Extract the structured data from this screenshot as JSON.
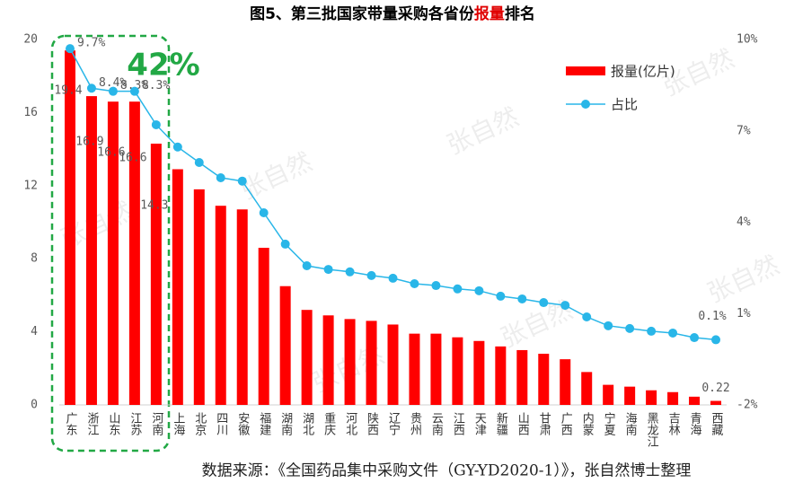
{
  "chart_data": {
    "type": "bar_line",
    "title_prefix": "图5、第三批国家带量采购各省份",
    "title_highlight": "报量",
    "title_suffix": "排名",
    "categories": [
      "广东",
      "浙江",
      "山东",
      "江苏",
      "河南",
      "上海",
      "北京",
      "四川",
      "安徽",
      "福建",
      "湖南",
      "湖北",
      "重庆",
      "河北",
      "陕西",
      "辽宁",
      "贵州",
      "云南",
      "江西",
      "天津",
      "新疆",
      "山西",
      "甘肃",
      "广西",
      "内蒙",
      "宁夏",
      "海南",
      "黑龙江",
      "吉林",
      "青海",
      "西藏"
    ],
    "series": [
      {
        "name": "报量(亿片)",
        "color": "#ff0000",
        "values": [
          19.4,
          16.9,
          16.6,
          16.6,
          14.3,
          12.9,
          11.8,
          10.9,
          10.7,
          8.6,
          6.5,
          5.2,
          4.9,
          4.7,
          4.6,
          4.4,
          3.9,
          3.9,
          3.7,
          3.5,
          3.2,
          3.0,
          2.8,
          2.5,
          1.8,
          1.1,
          1.0,
          0.8,
          0.7,
          0.45,
          0.22
        ],
        "value_labels": [
          "19.4",
          "16.9",
          "16.6",
          "16.6",
          "14.3",
          null,
          null,
          null,
          null,
          null,
          null,
          null,
          null,
          null,
          null,
          null,
          null,
          null,
          null,
          null,
          null,
          null,
          null,
          null,
          null,
          null,
          null,
          null,
          null,
          null,
          "0.22"
        ]
      },
      {
        "name": "占比",
        "color": "#29b6e8",
        "axis": "y2",
        "values": [
          9.7,
          8.4,
          8.3,
          8.3,
          7.2,
          6.47,
          5.96,
          5.46,
          5.35,
          4.31,
          3.28,
          2.57,
          2.45,
          2.37,
          2.25,
          2.16,
          1.98,
          1.92,
          1.81,
          1.75,
          1.57,
          1.48,
          1.36,
          1.27,
          0.89,
          0.6,
          0.51,
          0.42,
          0.36,
          0.21,
          0.14
        ],
        "value_labels": [
          "9.7%",
          "8.4%",
          "8.3%",
          "8.3%",
          null,
          null,
          null,
          null,
          null,
          null,
          null,
          null,
          null,
          null,
          null,
          null,
          null,
          null,
          null,
          null,
          null,
          null,
          null,
          null,
          null,
          null,
          null,
          null,
          null,
          null,
          "0.1%"
        ]
      }
    ],
    "ylim": [
      0,
      20
    ],
    "yticks": [
      0,
      4,
      8,
      12,
      16,
      20
    ],
    "y2lim": [
      -2,
      10
    ],
    "y2ticks": [
      {
        "value": -2,
        "label": "-2%"
      },
      {
        "value": 1,
        "label": "1%"
      },
      {
        "value": 4,
        "label": "4%"
      },
      {
        "value": 7,
        "label": "7%"
      },
      {
        "value": 10,
        "label": "10%"
      }
    ],
    "annotation": "42%",
    "watermark": "张自然",
    "source": "数据来源：《全国药品集中采购文件（GY-YD2020-1）》，张自然博士整理"
  }
}
